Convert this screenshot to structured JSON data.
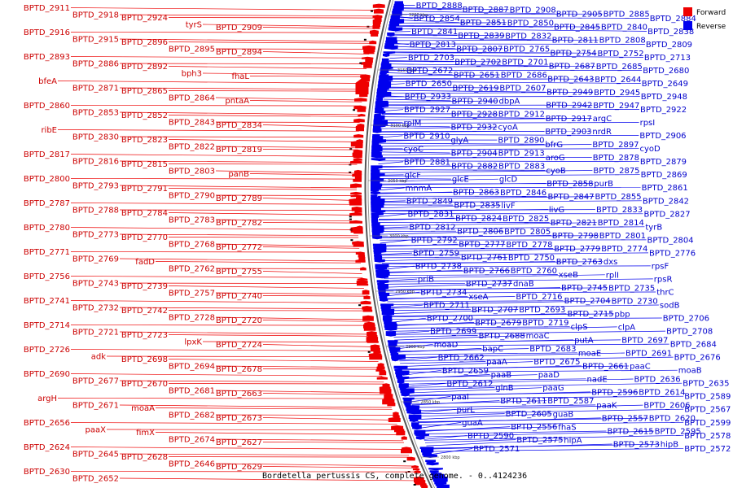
{
  "figure": {
    "caption": "Bordetella pertussis CS, complete genome. - 0..4124236",
    "legend": [
      {
        "label": "Forward",
        "color": "#ee0000"
      },
      {
        "label": "Reverse",
        "color": "#0000ee"
      }
    ],
    "scale_ticks": [
      {
        "label": "3200 kbp"
      },
      {
        "label": "3150 kbp"
      },
      {
        "label": "3100 kbp"
      },
      {
        "label": "3050 kbp"
      },
      {
        "label": "3000 kbp"
      },
      {
        "label": "2950 kbp"
      },
      {
        "label": "2900 kbp"
      },
      {
        "label": "2850 kbp"
      },
      {
        "label": "2800 kbp"
      }
    ],
    "forward_labels": [
      "BPTD_2911",
      "BPTD_2918",
      "BPTD_2924",
      "tyrS",
      "BPTD_2909",
      "BPTD_2916",
      "BPTD_2915",
      "BPTD_2896",
      "BPTD_2895",
      "BPTD_2894",
      "BPTD_2893",
      "BPTD_2886",
      "BPTD_2892",
      "bph3",
      "fhaL",
      "bfeA",
      "BPTD_2871",
      "BPTD_2865",
      "BPTD_2864",
      "pntaA",
      "BPTD_2860",
      "BPTD_2853",
      "BPTD_2852",
      "BPTD_2843",
      "BPTD_2834",
      "ribE",
      "BPTD_2830",
      "BPTD_2823",
      "BPTD_2822",
      "BPTD_2819",
      "BPTD_2817",
      "BPTD_2816",
      "BPTD_2815",
      "BPTD_2803",
      "panB",
      "BPTD_2800",
      "BPTD_2793",
      "BPTD_2791",
      "BPTD_2790",
      "BPTD_2789",
      "BPTD_2787",
      "BPTD_2788",
      "BPTD_2784",
      "BPTD_2783",
      "BPTD_2782",
      "BPTD_2780",
      "BPTD_2773",
      "BPTD_2770",
      "BPTD_2768",
      "BPTD_2772",
      "BPTD_2771",
      "BPTD_2769",
      "fadD",
      "BPTD_2762",
      "BPTD_2755",
      "BPTD_2756",
      "BPTD_2743",
      "BPTD_2739",
      "BPTD_2757",
      "BPTD_2740",
      "BPTD_2741",
      "BPTD_2732",
      "BPTD_2742",
      "BPTD_2728",
      "BPTD_2720",
      "BPTD_2714",
      "BPTD_2721",
      "BPTD_2723",
      "lpxK",
      "BPTD_2724",
      "BPTD_2726",
      "adk",
      "BPTD_2698",
      "BPTD_2694",
      "BPTD_2678",
      "BPTD_2690",
      "BPTD_2677",
      "BPTD_2670",
      "BPTD_2681",
      "BPTD_2663",
      "argH",
      "BPTD_2671",
      "moaA",
      "BPTD_2682",
      "BPTD_2673",
      "BPTD_2656",
      "paaX",
      "fimX",
      "BPTD_2674",
      "BPTD_2627",
      "BPTD_2624",
      "BPTD_2645",
      "BPTD_2628",
      "BPTD_2646",
      "BPTD_2629",
      "BPTD_2630",
      "BPTD_2652"
    ],
    "reverse_labels": [
      "BPTD_2888",
      "BPTD_2887",
      "BPTD_2908",
      "BPTD_2905",
      "BPTD_2885",
      "BPTD_2884",
      "BPTD_2854",
      "BPTD_2851",
      "BPTD_2850",
      "BPTD_2845",
      "BPTD_2840",
      "BPTD_2838",
      "BPTD_2841",
      "BPTD_2839",
      "BPTD_2832",
      "BPTD_2811",
      "BPTD_2808",
      "BPTD_2809",
      "BPTD_2813",
      "BPTD_2807",
      "BPTD_2765",
      "BPTD_2754",
      "BPTD_2752",
      "BPTD_2713",
      "BPTD_2703",
      "BPTD_2702",
      "BPTD_2701",
      "BPTD_2687",
      "BPTD_2685",
      "BPTD_2680",
      "BPTD_2672",
      "BPTD_2651",
      "BPTD_2686",
      "BPTD_2643",
      "BPTD_2644",
      "BPTD_2649",
      "BPTD_2650",
      "BPTD_2619",
      "BPTD_2607",
      "BPTD_2949",
      "BPTD_2945",
      "BPTD_2948",
      "BPTD_2933",
      "BPTD_2940",
      "dbpA",
      "BPTD_2942",
      "BPTD_2947",
      "BPTD_2922",
      "BPTD_2927",
      "BPTD_2928",
      "BPTD_2912",
      "BPTD_2917",
      "argC",
      "rpsI",
      "rplM",
      "BPTD_2932",
      "cyoA",
      "BPTD_2903",
      "nrdR",
      "BPTD_2906",
      "BPTD_2910",
      "glyA",
      "BPTD_2890",
      "bfrG",
      "BPTD_2897",
      "cyoD",
      "cyoC",
      "BPTD_2904",
      "BPTD_2913",
      "aroG",
      "BPTD_2878",
      "BPTD_2879",
      "BPTD_2881",
      "BPTD_2882",
      "BPTD_2883",
      "cyoB",
      "BPTD_2875",
      "BPTD_2869",
      "glcF",
      "glcE",
      "glcD",
      "BPTD_2858",
      "purB",
      "BPTD_2861",
      "mnmA",
      "BPTD_2863",
      "BPTD_2846",
      "BPTD_2847",
      "BPTD_2855",
      "BPTD_2842",
      "BPTD_2849",
      "BPTD_2835",
      "livF",
      "livG",
      "BPTD_2833",
      "BPTD_2827",
      "BPTD_2831",
      "BPTD_2824",
      "BPTD_2825",
      "BPTD_2821",
      "BPTD_2814",
      "tyrB",
      "BPTD_2812",
      "BPTD_2806",
      "BPTD_2805",
      "BPTD_2798",
      "BPTD_2801",
      "BPTD_2804",
      "BPTD_2792",
      "BPTD_2777",
      "BPTD_2778",
      "BPTD_2779",
      "BPTD_2774",
      "BPTD_2776",
      "BPTD_2759",
      "BPTD_2761",
      "BPTD_2750",
      "BPTD_2763",
      "dxs",
      "rpsF",
      "BPTD_2738",
      "BPTD_2766",
      "BPTD_2760",
      "xseB",
      "rplI",
      "rpsR",
      "priB",
      "BPTD_2737",
      "dnaB",
      "BPTD_2745",
      "BPTD_2735",
      "thrC",
      "BPTD_2734",
      "xseA",
      "BPTD_2716",
      "BPTD_2704",
      "BPTD_2730",
      "sodB",
      "BPTD_2711",
      "BPTD_2707",
      "BPTD_2693",
      "BPTD_2715",
      "pbp",
      "BPTD_2706",
      "BPTD_2700",
      "BPTD_2679",
      "BPTD_2719",
      "clpS",
      "clpA",
      "BPTD_2708",
      "BPTD_2699",
      "BPTD_2688",
      "moaC",
      "putA",
      "BPTD_2697",
      "BPTD_2684",
      "moaD",
      "bapC",
      "BPTD_2683",
      "moaE",
      "BPTD_2691",
      "BPTD_2676",
      "BPTD_2662",
      "paaA",
      "BPTD_2675",
      "BPTD_2661",
      "paaC",
      "moaB",
      "BPTD_2659",
      "paaB",
      "paaD",
      "nadE",
      "BPTD_2636",
      "BPTD_2635",
      "BPTD_2612",
      "glnB",
      "paaG",
      "BPTD_2596",
      "BPTD_2614",
      "BPTD_2589",
      "paaI",
      "BPTD_2611",
      "BPTD_2587",
      "paaK",
      "BPTD_2606",
      "BPTD_2567",
      "purL",
      "BPTD_2605",
      "guaB",
      "BPTD_2557",
      "BPTD_2620",
      "BPTD_2599",
      "guaA",
      "BPTD_2556",
      "fhaS",
      "BPTD_2615",
      "BPTD_2595",
      "BPTD_2578",
      "BPTD_2590",
      "BPTD_2575",
      "hipA",
      "BPTD_2573",
      "hipB",
      "BPTD_2572",
      "BPTD_2571"
    ]
  }
}
